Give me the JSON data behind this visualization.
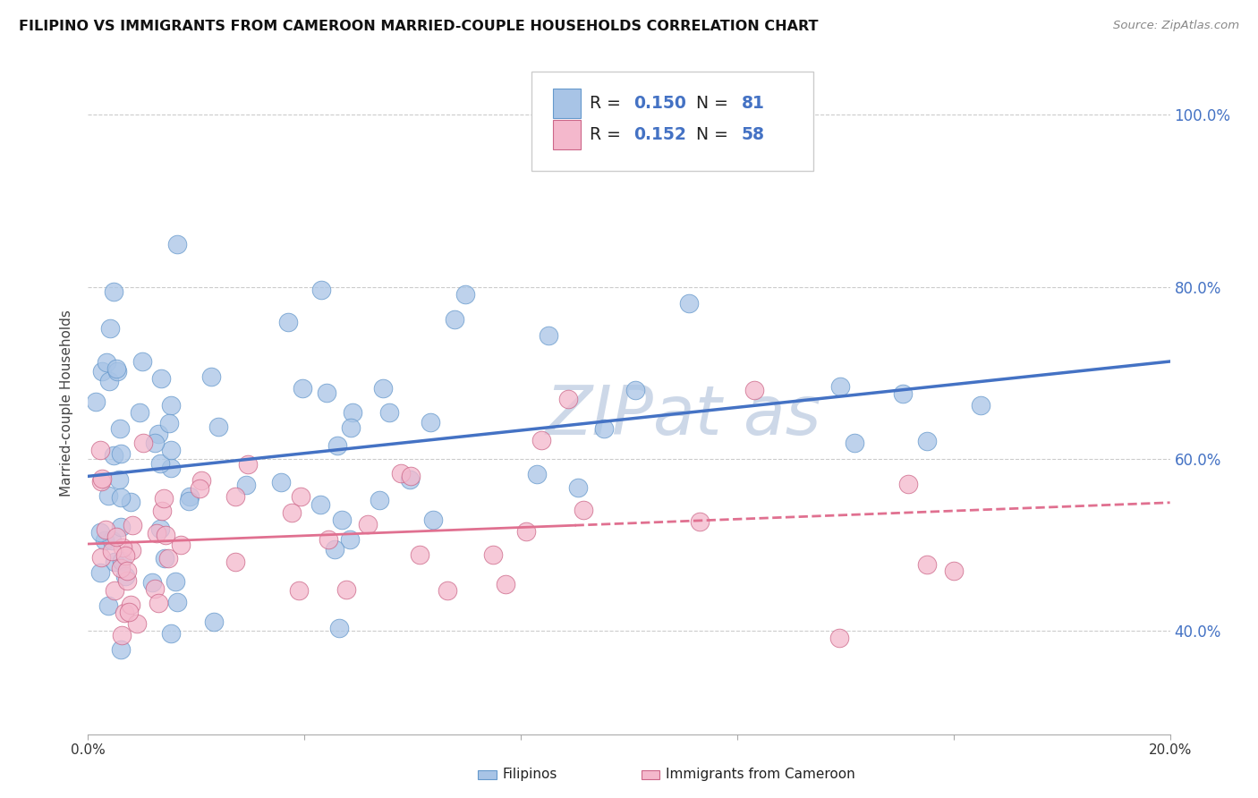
{
  "title": "FILIPINO VS IMMIGRANTS FROM CAMEROON MARRIED-COUPLE HOUSEHOLDS CORRELATION CHART",
  "source": "Source: ZipAtlas.com",
  "ylabel": "Married-couple Households",
  "xlim": [
    0.0,
    0.2
  ],
  "ylim": [
    0.28,
    1.05
  ],
  "ytick_positions": [
    0.4,
    0.6,
    0.8,
    1.0
  ],
  "ytick_labels": [
    "40.0%",
    "60.0%",
    "80.0%",
    "100.0%"
  ],
  "xtick_positions": [
    0.0,
    0.04,
    0.08,
    0.12,
    0.16,
    0.2
  ],
  "xtick_labels": [
    "0.0%",
    "",
    "",
    "",
    "",
    "20.0%"
  ],
  "filipino_R": 0.15,
  "filipino_N": 81,
  "cameroon_R": 0.152,
  "cameroon_N": 58,
  "filipino_dot_color": "#a8c4e6",
  "filipino_edge_color": "#6699cc",
  "cameroon_dot_color": "#f4b8cc",
  "cameroon_edge_color": "#cc6688",
  "filipino_line_color": "#4472c4",
  "cameroon_line_color": "#e07090",
  "watermark_color": "#cdd8e8",
  "legend_label_filipino": "Filipinos",
  "legend_label_cameroon": "Immigrants from Cameroon",
  "grid_color": "#cccccc",
  "background_color": "#ffffff",
  "title_color": "#111111",
  "source_color": "#888888",
  "ylabel_color": "#444444",
  "right_tick_color": "#4472c4"
}
